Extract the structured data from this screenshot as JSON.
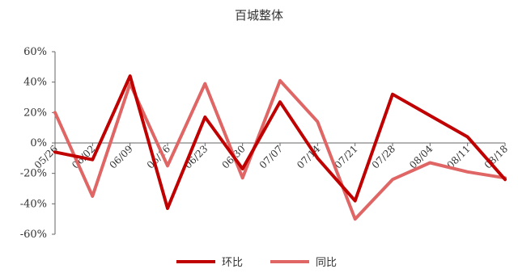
{
  "chart_data": {
    "type": "line",
    "title": "百城整体",
    "xlabel": "",
    "ylabel": "",
    "categories": [
      "05/26",
      "06/02",
      "06/09",
      "06/16",
      "06/23",
      "06/30",
      "07/07",
      "07/14",
      "07/21",
      "07/28",
      "08/04",
      "08/11",
      "08/18"
    ],
    "ylim": [
      -60,
      60
    ],
    "yticks": [
      -60,
      -40,
      -20,
      0,
      20,
      40,
      60
    ],
    "ytick_labels": [
      "-60%",
      "-40%",
      "-20%",
      "0%",
      "20%",
      "40%",
      "60%"
    ],
    "legend_position": "bottom-center",
    "grid": false,
    "series": [
      {
        "name": "环比",
        "color": "#c00000",
        "values": [
          -6,
          -11,
          44,
          -43,
          17,
          -17,
          27,
          -10,
          -38,
          32,
          18,
          4,
          -24
        ]
      },
      {
        "name": "同比",
        "color": "#e06666",
        "values": [
          20,
          -35,
          39,
          -15,
          39,
          -23,
          41,
          14,
          -50,
          -24,
          -13,
          -19,
          -23
        ]
      }
    ]
  }
}
